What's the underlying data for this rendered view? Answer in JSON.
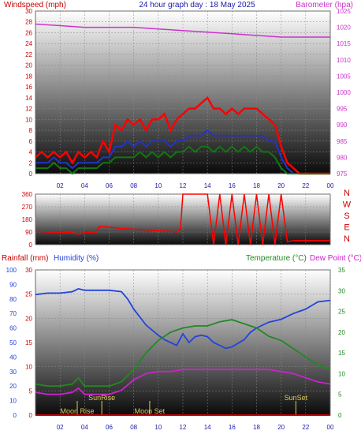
{
  "top_panel": {
    "title_left": "Windspeed (mph)",
    "title_center": "24 hour graph day : 18 May 2025",
    "title_right": "Barometer (hpa)"
  },
  "middle_panel": {
    "compass": [
      "N",
      "W",
      "S",
      "E",
      "N"
    ]
  },
  "bottom_panel": {
    "title_rain": "Rainfall (mm)",
    "title_humidity": "Humidity (%)",
    "title_temperature": "Temperature (°C)",
    "title_dewpoint": "Dew Point (°C)",
    "annotations": [
      "Moon Rise",
      "SunRise",
      "Moon Set",
      "SunSet"
    ]
  },
  "colors": {
    "wind_gust": "#ff0000",
    "wind_avg": "#2233cc",
    "wind_low": "#117711",
    "barometer": "#cc33cc",
    "humidity": "#2244dd",
    "temperature": "#228822",
    "dewpoint": "#cc22cc",
    "rain_axis": "#cc0000",
    "annotation": "#ddcc55"
  },
  "chart_data": [
    {
      "type": "line",
      "x_ticks": [
        "02",
        "04",
        "06",
        "08",
        "10",
        "12",
        "14",
        "16",
        "18",
        "20",
        "22",
        "00"
      ],
      "xlim": [
        0,
        24
      ],
      "y_left_ticks": [
        "0",
        "2",
        "4",
        "6",
        "8",
        "10",
        "12",
        "14",
        "16",
        "18",
        "20",
        "22",
        "24",
        "26",
        "28",
        "30"
      ],
      "ylim_left": [
        0,
        30
      ],
      "y_right_ticks": [
        "975",
        "980",
        "985",
        "990",
        "995",
        "1000",
        "1005",
        "1010",
        "1015",
        "1020",
        "1025"
      ],
      "ylim_right": [
        975,
        1025
      ],
      "series": [
        {
          "key": "gust",
          "axis": "left",
          "x": [
            0,
            0.5,
            1,
            1.5,
            2,
            2.5,
            3,
            3.5,
            4,
            4.5,
            5,
            5.5,
            6,
            6.5,
            7,
            7.5,
            8,
            8.5,
            9,
            9.5,
            10,
            10.5,
            11,
            11.5,
            12,
            12.5,
            13,
            13.5,
            14,
            14.5,
            15,
            15.5,
            16,
            16.5,
            17,
            17.5,
            18,
            18.5,
            19,
            19.5,
            20,
            20.5,
            21,
            21.5,
            22,
            22.5,
            23,
            23.5,
            24
          ],
          "values": [
            3,
            4,
            3,
            4,
            3,
            4,
            2,
            4,
            3,
            4,
            3,
            6,
            4,
            9,
            8,
            10,
            9,
            10,
            8,
            10,
            10,
            11,
            8,
            10,
            11,
            12,
            12,
            13,
            14,
            12,
            12,
            11,
            12,
            11,
            12,
            12,
            12,
            11,
            10,
            9,
            5,
            2,
            1,
            0,
            0,
            0,
            0,
            0,
            0
          ]
        },
        {
          "key": "avg",
          "axis": "left",
          "x": [
            0,
            0.5,
            1,
            1.5,
            2,
            2.5,
            3,
            3.5,
            4,
            4.5,
            5,
            5.5,
            6,
            6.5,
            7,
            7.5,
            8,
            8.5,
            9,
            9.5,
            10,
            10.5,
            11,
            11.5,
            12,
            12.5,
            13,
            13.5,
            14,
            14.5,
            15,
            15.5,
            16,
            16.5,
            17,
            17.5,
            18,
            18.5,
            19,
            19.5,
            20,
            20.5,
            21,
            21.5,
            22,
            22.5,
            23,
            23.5,
            24
          ],
          "values": [
            2,
            2,
            2,
            3,
            2,
            2,
            1,
            2,
            2,
            2,
            2,
            3,
            3,
            5,
            5,
            6,
            5,
            6,
            5,
            6,
            6,
            6,
            5,
            6,
            6,
            7,
            7,
            7,
            8,
            7,
            7,
            7,
            7,
            7,
            7,
            7,
            7,
            7,
            6,
            6,
            3,
            1,
            0,
            0,
            0,
            0,
            0,
            0,
            0
          ]
        },
        {
          "key": "low",
          "axis": "left",
          "x": [
            0,
            0.5,
            1,
            1.5,
            2,
            2.5,
            3,
            3.5,
            4,
            4.5,
            5,
            5.5,
            6,
            6.5,
            7,
            7.5,
            8,
            8.5,
            9,
            9.5,
            10,
            10.5,
            11,
            11.5,
            12,
            12.5,
            13,
            13.5,
            14,
            14.5,
            15,
            15.5,
            16,
            16.5,
            17,
            17.5,
            18,
            18.5,
            19,
            19.5,
            20,
            20.5,
            21,
            21.5,
            22,
            22.5,
            23,
            23.5,
            24
          ],
          "values": [
            1,
            1,
            1,
            2,
            1,
            1,
            0,
            1,
            1,
            1,
            1,
            2,
            2,
            3,
            3,
            3,
            3,
            4,
            3,
            4,
            3,
            4,
            3,
            4,
            4,
            5,
            4,
            5,
            5,
            4,
            5,
            4,
            5,
            4,
            5,
            4,
            5,
            4,
            4,
            3,
            1,
            0,
            0,
            0,
            0,
            0,
            0,
            0,
            0
          ]
        },
        {
          "key": "baro",
          "axis": "right",
          "x": [
            0,
            2,
            4,
            6,
            8,
            10,
            12,
            14,
            16,
            18,
            20,
            22,
            24
          ],
          "values": [
            1021,
            1020.5,
            1020,
            1020,
            1020,
            1019.5,
            1019,
            1018.5,
            1018,
            1017.5,
            1017,
            1017,
            1017
          ]
        }
      ]
    },
    {
      "type": "line",
      "x_ticks": [
        "02",
        "04",
        "06",
        "08",
        "10",
        "12",
        "14",
        "16",
        "18",
        "20",
        "22",
        "00"
      ],
      "xlim": [
        0,
        24
      ],
      "y_ticks": [
        "0",
        "90",
        "180",
        "270",
        "360"
      ],
      "ylim": [
        0,
        360
      ],
      "series": [
        {
          "key": "direction",
          "x": [
            0,
            1,
            2,
            3,
            3.5,
            4,
            5,
            5.2,
            6,
            7,
            8,
            9,
            10,
            11,
            11.5,
            11.8,
            12,
            13,
            14,
            14.5,
            15,
            15.5,
            16,
            16.5,
            17,
            17.5,
            18,
            18.5,
            19,
            19.5,
            20,
            20.5,
            21,
            22,
            23,
            24
          ],
          "values": [
            95,
            90,
            88,
            85,
            75,
            88,
            90,
            130,
            125,
            115,
            110,
            105,
            100,
            95,
            90,
            110,
            360,
            360,
            360,
            0,
            360,
            0,
            360,
            0,
            360,
            0,
            360,
            0,
            360,
            0,
            360,
            20,
            30,
            30,
            30,
            30
          ]
        }
      ]
    },
    {
      "type": "line",
      "x_ticks": [
        "02",
        "04",
        "06",
        "08",
        "10",
        "12",
        "14",
        "16",
        "18",
        "20",
        "22",
        "00"
      ],
      "xlim": [
        0,
        24
      ],
      "y_hum_ticks": [
        "0",
        "10",
        "20",
        "30",
        "40",
        "50",
        "60",
        "70",
        "80",
        "90",
        "100"
      ],
      "ylim_humidity": [
        0,
        100
      ],
      "y_rain_ticks": [
        "0",
        "5",
        "10",
        "15",
        "20",
        "25",
        "30"
      ],
      "ylim_rain": [
        0,
        30
      ],
      "y_temp_ticks": [
        "0",
        "5",
        "10",
        "15",
        "20",
        "25",
        "30",
        "35"
      ],
      "ylim_temp": [
        0,
        35
      ],
      "series": [
        {
          "key": "humidity",
          "axis": "humidity",
          "x": [
            0,
            1,
            2,
            3,
            3.5,
            4,
            5,
            6,
            7,
            7.5,
            8,
            9,
            10,
            10.5,
            11,
            11.5,
            12,
            12.5,
            13,
            13.5,
            14,
            14.5,
            15,
            15.5,
            16,
            17,
            17.5,
            18,
            19,
            20,
            21,
            22,
            23,
            24
          ],
          "values": [
            83,
            84,
            84,
            85,
            87,
            86,
            86,
            86,
            85,
            80,
            73,
            62,
            55,
            52,
            50,
            48,
            56,
            50,
            54,
            55,
            54,
            50,
            48,
            46,
            47,
            52,
            57,
            60,
            64,
            66,
            70,
            73,
            78,
            79
          ]
        },
        {
          "key": "temperature",
          "axis": "temp",
          "x": [
            0,
            1,
            2,
            3,
            3.5,
            4,
            5,
            6,
            7,
            8,
            9,
            10,
            11,
            12,
            13,
            14,
            15,
            16,
            17,
            18,
            19,
            20,
            21,
            22,
            23,
            24
          ],
          "values": [
            7.5,
            7,
            7,
            7.5,
            9,
            7,
            7,
            7,
            8,
            11,
            15,
            18,
            20,
            21,
            21.5,
            21.5,
            22.5,
            23,
            22,
            21,
            19,
            18,
            16,
            14,
            12,
            11
          ]
        },
        {
          "key": "dewpoint",
          "axis": "temp",
          "x": [
            0,
            1,
            2,
            3,
            3.5,
            4,
            5,
            6,
            7,
            8,
            9,
            10,
            11,
            12,
            13,
            14,
            15,
            16,
            17,
            18,
            19,
            20,
            21,
            22,
            23,
            24
          ],
          "values": [
            5.5,
            5,
            5,
            5.5,
            6.5,
            5,
            5,
            5,
            6,
            8.5,
            10,
            10.5,
            10.5,
            11,
            11,
            11,
            11,
            11,
            11,
            11,
            11,
            10.5,
            10,
            9,
            8,
            7.5
          ]
        },
        {
          "key": "rain",
          "axis": "rain",
          "x": [
            0,
            24
          ],
          "values": [
            0,
            0
          ]
        }
      ],
      "annotations": [
        {
          "label_index": 0,
          "x": 3.4
        },
        {
          "label_index": 1,
          "x": 5.4
        },
        {
          "label_index": 2,
          "x": 9.3
        },
        {
          "label_index": 3,
          "x": 21.2
        }
      ]
    }
  ]
}
